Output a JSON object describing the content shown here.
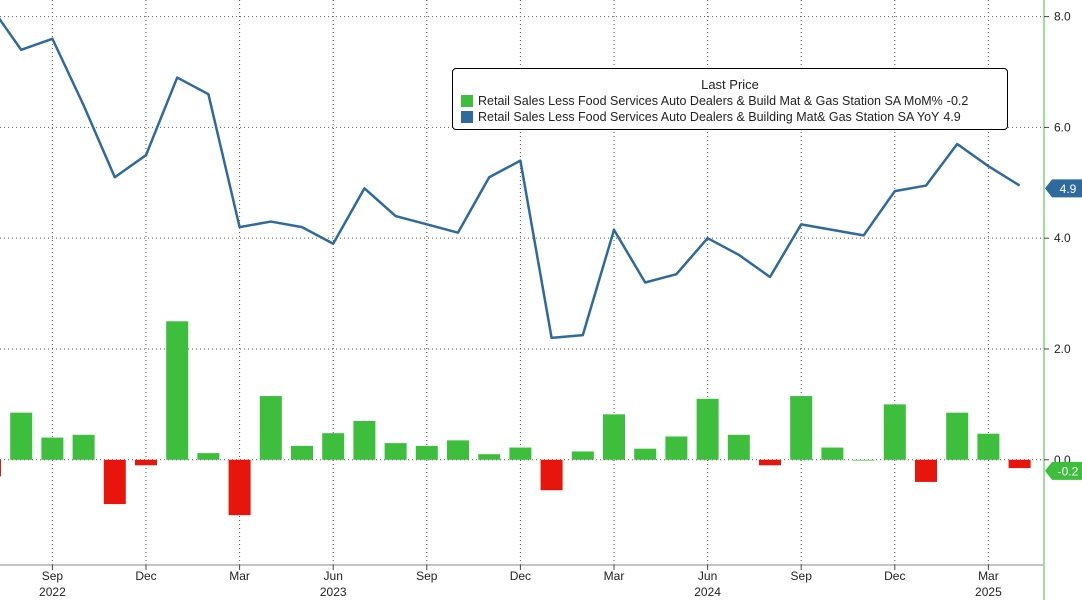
{
  "chart_data": {
    "type": "bar+line",
    "legend": {
      "title": "Last Price",
      "placement": "top-right"
    },
    "series": [
      {
        "name": "Retail Sales Less Food Services Auto Dealers & Build Mat & Gas Station SA MoM%",
        "type": "bar",
        "last_value": "-0.2",
        "color_positive": "#3dbf3d",
        "color_negative": "#e8150d",
        "values": [
          -0.3,
          0.85,
          0.4,
          0.45,
          -0.8,
          -0.1,
          2.5,
          0.12,
          -1.0,
          1.15,
          0.25,
          0.48,
          0.7,
          0.3,
          0.25,
          0.35,
          0.1,
          0.22,
          -0.55,
          0.15,
          0.82,
          0.2,
          0.42,
          1.1,
          0.45,
          -0.1,
          1.15,
          0.22,
          0.0,
          1.0,
          -0.4,
          0.85,
          0.47,
          -0.15
        ]
      },
      {
        "name": "Retail Sales Less Food Services Auto Dealers & Building Mat& Gas Station SA YoY",
        "type": "line",
        "last_value": "4.9",
        "color": "#2e6a9c",
        "values": [
          8.2,
          7.4,
          7.6,
          6.4,
          5.1,
          5.5,
          6.9,
          6.6,
          4.2,
          4.3,
          4.2,
          3.9,
          4.9,
          4.4,
          4.25,
          4.1,
          5.1,
          5.4,
          2.2,
          2.25,
          4.15,
          3.2,
          3.35,
          4.0,
          3.7,
          3.3,
          4.25,
          4.15,
          4.05,
          4.85,
          4.95,
          5.7,
          5.3,
          4.95
        ]
      }
    ],
    "y_axis": {
      "position": "right",
      "ticks": [
        "8.0",
        "6.0",
        "4.0",
        "2.0",
        "0.0"
      ],
      "ylim": [
        -1.9,
        8.3
      ]
    },
    "x_axis": {
      "month_ticks": [
        "Sep",
        "Dec",
        "Mar",
        "Jun",
        "Sep",
        "Dec",
        "Mar",
        "Jun",
        "Sep",
        "Dec",
        "Mar"
      ],
      "month_tick_index": [
        2,
        5,
        8,
        11,
        14,
        17,
        20,
        23,
        26,
        29,
        32
      ],
      "year_labels": [
        "2022",
        "2023",
        "2024",
        "2025"
      ],
      "year_label_index": [
        2,
        11,
        23,
        32
      ],
      "start": "Jul 2022",
      "end": "Apr 2025"
    },
    "grid": true
  }
}
